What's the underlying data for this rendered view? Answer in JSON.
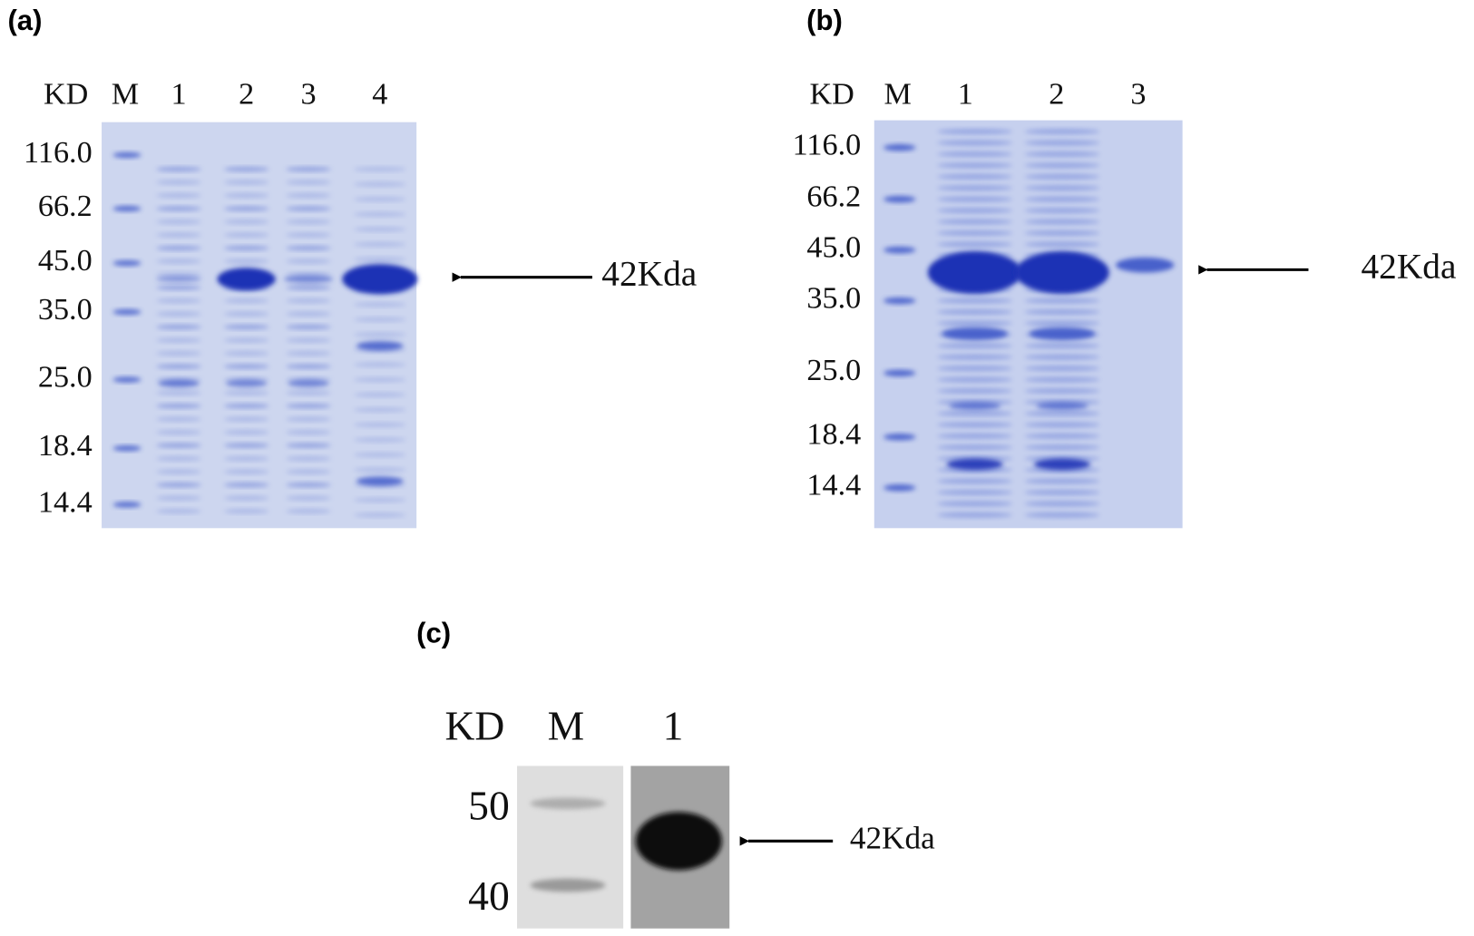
{
  "panels": [
    {
      "label": "(a)",
      "header": [
        "KD",
        "M",
        "1",
        "2",
        "3",
        "4"
      ],
      "markers": [
        "116.0",
        "66.2",
        "45.0",
        "35.0",
        "25.0",
        "18.4",
        "14.4"
      ],
      "annotation": "42Kda"
    },
    {
      "label": "(b)",
      "header": [
        "KD",
        "M",
        "1",
        "2",
        "3"
      ],
      "markers": [
        "116.0",
        "66.2",
        "45.0",
        "35.0",
        "25.0",
        "18.4",
        "14.4"
      ],
      "annotation": "42Kda"
    },
    {
      "label": "(c)",
      "header": [
        "KD",
        "M",
        "1"
      ],
      "markers": [
        "50",
        "40"
      ],
      "annotation": "42Kda"
    }
  ]
}
